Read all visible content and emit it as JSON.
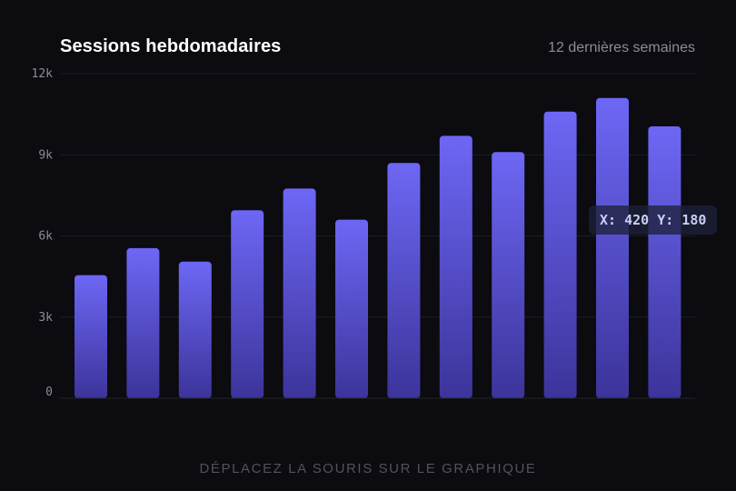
{
  "header": {
    "title": "Sessions hebdomadaires",
    "subtitle": "12 dernières semaines"
  },
  "readout": {
    "text": "X: 420 Y: 180"
  },
  "hint": {
    "text": "DÉPLACEZ LA SOURIS SUR LE GRAPHIQUE"
  },
  "colors": {
    "background": "#0b0b10",
    "bar_top": "#6d67f5",
    "bar_bottom": "#3c349a",
    "title": "#ffffff",
    "muted": "#8a8d98"
  },
  "chart_data": {
    "type": "bar",
    "title": "Sessions hebdomadaires",
    "subtitle": "12 dernières semaines",
    "xlabel": "",
    "ylabel": "",
    "categories": [
      "",
      "",
      "",
      "",
      "",
      "",
      "",
      "",
      "",
      "",
      "",
      ""
    ],
    "values": [
      4550,
      5550,
      5050,
      6950,
      7750,
      6600,
      8700,
      9700,
      9100,
      10600,
      11100,
      10050
    ],
    "ylim": [
      0,
      12000
    ],
    "yticks": [
      0,
      3000,
      6000,
      9000,
      12000
    ],
    "ytick_labels": [
      "0",
      "3k",
      "6k",
      "9k",
      "12k"
    ],
    "grid": true,
    "legend": "none"
  }
}
